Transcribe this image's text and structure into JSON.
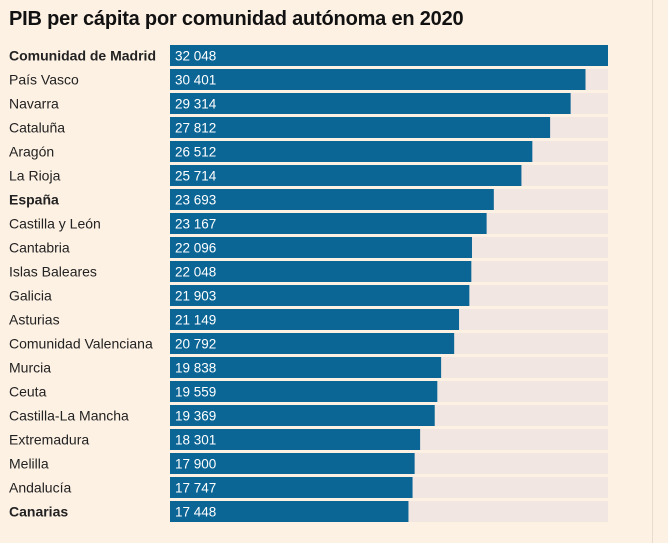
{
  "title": "PIB per cápita por comunidad autónoma en 2020",
  "colors": {
    "bar": "#0b6595",
    "track": "#f1e6e1",
    "background": "#fdf1e4"
  },
  "chart_data": {
    "type": "bar",
    "orientation": "horizontal",
    "title": "PIB per cápita por comunidad autónoma en 2020",
    "xlabel": "",
    "ylabel": "",
    "xlim": [
      0,
      32048
    ],
    "grid": false,
    "categories": [
      "Comunidad de Madrid",
      "País Vasco",
      "Navarra",
      "Cataluña",
      "Aragón",
      "La Rioja",
      "España",
      "Castilla y León",
      "Cantabria",
      "Islas Baleares",
      "Galicia",
      "Asturias",
      "Comunidad Valenciana",
      "Murcia",
      "Ceuta",
      "Castilla-La Mancha",
      "Extremadura",
      "Melilla",
      "Andalucía",
      "Canarias"
    ],
    "values": [
      32048,
      30401,
      29314,
      27812,
      26512,
      25714,
      23693,
      23167,
      22096,
      22048,
      21903,
      21149,
      20792,
      19838,
      19559,
      19369,
      18301,
      17900,
      17747,
      17448
    ],
    "value_labels": [
      "32 048",
      "30 401",
      "29 314",
      "27 812",
      "26 512",
      "25 714",
      "23 693",
      "23 167",
      "22 096",
      "22 048",
      "21 903",
      "21 149",
      "20 792",
      "19 838",
      "19 559",
      "19 369",
      "18 301",
      "17 900",
      "17 747",
      "17 448"
    ],
    "bold_categories": [
      "Comunidad de Madrid",
      "España",
      "Canarias"
    ]
  }
}
